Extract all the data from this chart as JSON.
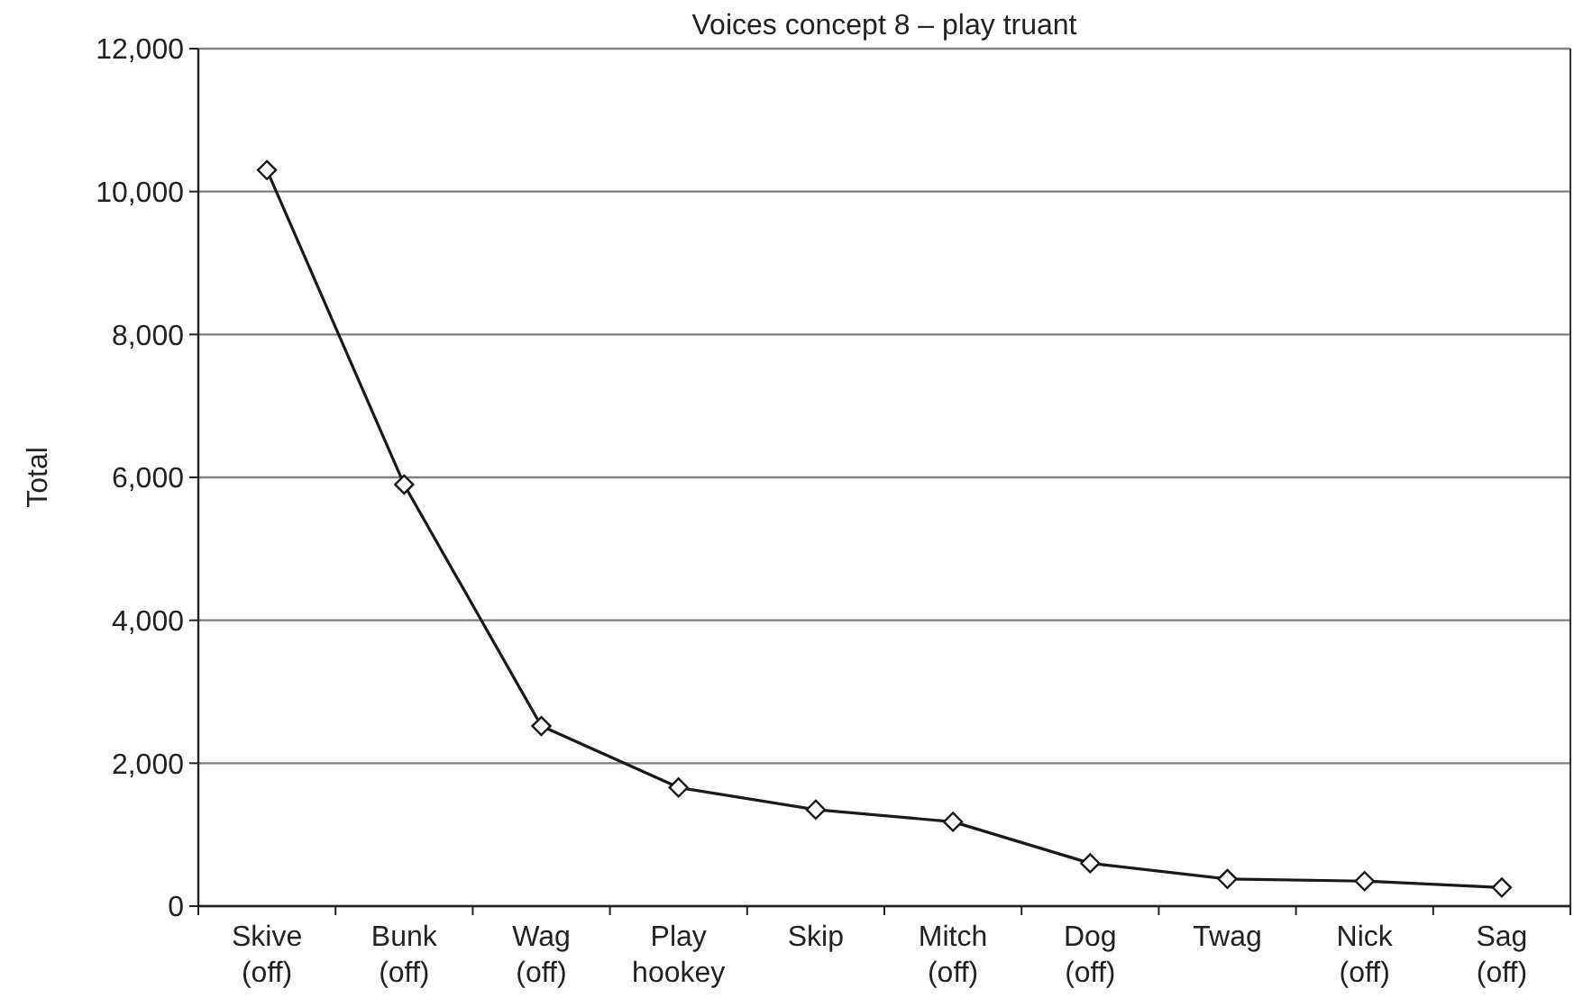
{
  "chart_data": {
    "type": "line",
    "title": "Voices concept 8 – play truant",
    "ylabel": "Total",
    "categories": [
      "Skive\n(off)",
      "Bunk\n(off)",
      "Wag\n(off)",
      "Play\nhookey",
      "Skip",
      "Mitch\n(off)",
      "Dog\n(off)",
      "Twag",
      "Nick\n(off)",
      "Sag\n(off)"
    ],
    "series": [
      {
        "color": "#1a1a1a",
        "values": [
          10300,
          5900,
          2520,
          1660,
          1350,
          1180,
          600,
          380,
          350,
          260
        ]
      }
    ],
    "ylim": [
      0,
      12000
    ],
    "yticks": [
      {
        "value": 0,
        "label": "0"
      },
      {
        "value": 2000,
        "label": "2,000"
      },
      {
        "value": 4000,
        "label": "4,000"
      },
      {
        "value": 6000,
        "label": "6,000"
      },
      {
        "value": 8000,
        "label": "8,000"
      },
      {
        "value": 10000,
        "label": "10,000"
      },
      {
        "value": 12000,
        "label": "12,000"
      }
    ],
    "grid": "y",
    "marker": "diamond",
    "line_style": "solid"
  }
}
